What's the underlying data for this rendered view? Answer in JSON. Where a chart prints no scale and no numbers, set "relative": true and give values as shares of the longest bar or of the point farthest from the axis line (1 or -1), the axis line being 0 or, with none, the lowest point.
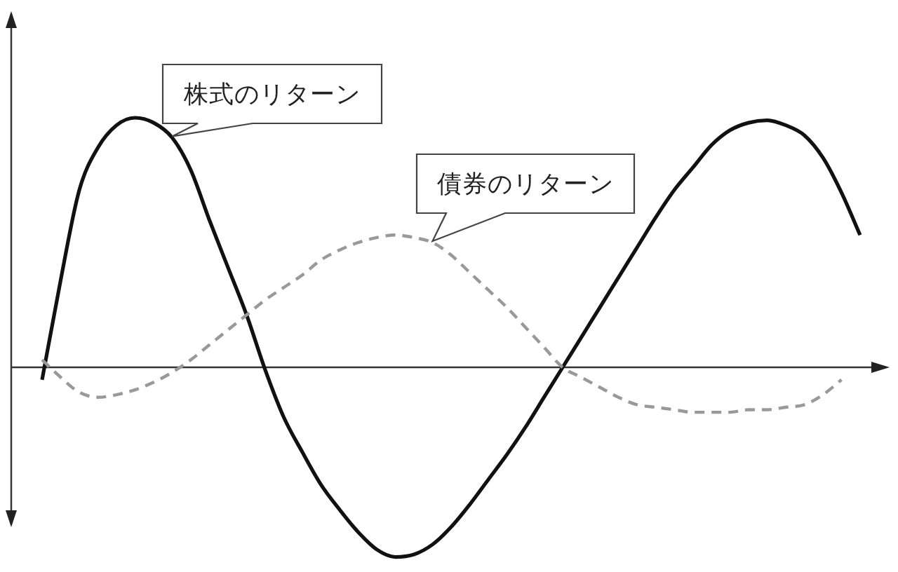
{
  "chart_data": {
    "type": "line",
    "relative": true,
    "categories": [
      null,
      null,
      null,
      null,
      null,
      null,
      null,
      null,
      null,
      null,
      null,
      null,
      null,
      null,
      null,
      null,
      null,
      null,
      null,
      null,
      null,
      null,
      null,
      null,
      null,
      null,
      null,
      null,
      null,
      null,
      null,
      null,
      null,
      null,
      null,
      null,
      null,
      null,
      null,
      null,
      null,
      null,
      null,
      null,
      null
    ],
    "series": [
      {
        "name": "株式のリターン",
        "color": "#111111",
        "line_style": "solid",
        "values": [
          -0.05,
          0.35,
          0.71,
          0.88,
          0.97,
          1.0,
          0.98,
          0.92,
          0.79,
          0.59,
          0.4,
          0.21,
          -0.01,
          -0.2,
          -0.34,
          -0.47,
          -0.57,
          -0.66,
          -0.73,
          -0.76,
          -0.75,
          -0.71,
          -0.64,
          -0.55,
          -0.45,
          -0.35,
          -0.24,
          -0.12,
          0.0,
          0.12,
          0.24,
          0.36,
          0.48,
          0.6,
          0.71,
          0.8,
          0.89,
          0.95,
          0.98,
          0.99,
          0.97,
          0.93,
          0.84,
          0.7,
          0.53
        ]
      },
      {
        "name": "債券のリターン",
        "color": "#999999",
        "line_style": "dashed",
        "values": [
          0.03,
          -0.04,
          -0.1,
          -0.12,
          -0.11,
          -0.09,
          -0.06,
          -0.02,
          0.03,
          0.09,
          0.15,
          0.21,
          0.27,
          0.32,
          0.37,
          0.43,
          0.47,
          0.5,
          0.52,
          0.53,
          0.52,
          0.5,
          0.45,
          0.38,
          0.31,
          0.24,
          0.16,
          0.08,
          0.0,
          -0.04,
          -0.08,
          -0.12,
          -0.15,
          -0.16,
          -0.17,
          -0.18,
          -0.18,
          -0.18,
          -0.17,
          -0.17,
          -0.16,
          -0.15,
          -0.11,
          -0.05,
          null
        ]
      }
    ]
  }
}
